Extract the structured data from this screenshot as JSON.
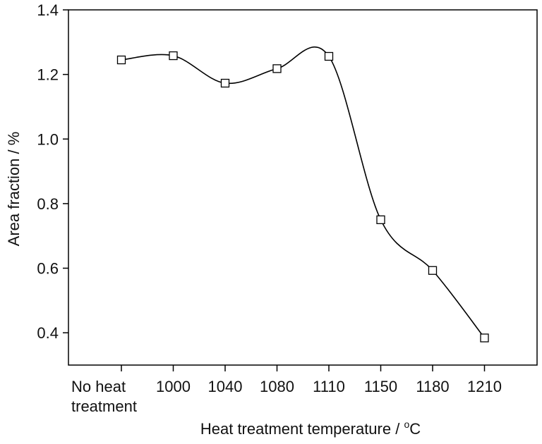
{
  "chart_data": {
    "type": "scatter",
    "title": "",
    "xlabel": "Heat treatment temperature / ",
    "xlabel_unit_sup": "o",
    "xlabel_unit": "C",
    "ylabel": "Area fraction / %",
    "categories": [
      [
        "No heat",
        "treatment"
      ],
      [
        "1000"
      ],
      [
        "1040"
      ],
      [
        "1080"
      ],
      [
        "1110"
      ],
      [
        "1150"
      ],
      [
        "1180"
      ],
      [
        "1210"
      ]
    ],
    "values": [
      1.245,
      1.258,
      1.173,
      1.218,
      1.256,
      0.75,
      0.593,
      0.384
    ],
    "ylim": [
      0.3,
      1.4
    ],
    "yticks": [
      "0.4",
      "0.6",
      "0.8",
      "1.0",
      "1.2",
      "1.4"
    ],
    "grid": false,
    "marker": "open-square",
    "smooth_curve": true,
    "curve_color": "#000000"
  }
}
